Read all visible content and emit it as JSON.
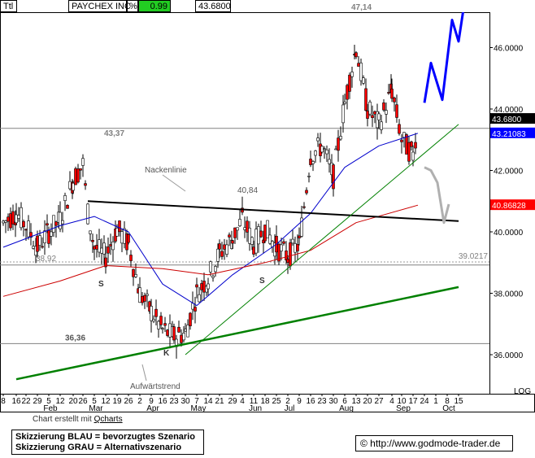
{
  "header": {
    "ttl": "Ttl",
    "name": "PAYCHEX INC",
    "pct_symbol": "%",
    "change": "0.99",
    "price": "43.6800"
  },
  "footer": {
    "credit_prefix": "Chart erstellt mit",
    "credit_link": "Qcharts",
    "legend_blue": "Skizzierung BLAU = bevorzugtes Szenario",
    "legend_gray": "Skizzierung GRAU = Alternativszenario",
    "website": "© http://www.godmode-trader.de"
  },
  "colors": {
    "change_bg": "#22cc22",
    "scenario_blue": "#0000ff",
    "scenario_gray": "#b0b0b0",
    "trend_green": "#008000",
    "sma_blue": "#0000cc",
    "sma_red": "#cc0000",
    "neckline": "#000000",
    "candle": "#000000",
    "candle_down_fill": "#ff0000",
    "level_label": "#808080"
  },
  "chart_data": {
    "type": "candlestick",
    "title": "PAYCHEX INC",
    "scale": "LOG",
    "grid": false,
    "ylim": [
      35.0,
      48.0
    ],
    "y_ticks": [
      "36.0000",
      "38.0000",
      "40.0000",
      "42.0000",
      "44.0000",
      "46.0000"
    ],
    "x_ticks": [
      "8",
      "16",
      "22",
      "29",
      "5",
      "12",
      "20",
      "26",
      "5",
      "12",
      "19",
      "26",
      "2",
      "9",
      "16",
      "23",
      "30",
      "7",
      "14",
      "21",
      "29",
      "4",
      "11",
      "18",
      "25",
      "2",
      "9",
      "16",
      "23",
      "30",
      "6",
      "13",
      "20",
      "27",
      "4",
      "10",
      "17",
      "24",
      "1",
      "8",
      "15"
    ],
    "month_labels": [
      "Feb",
      "Mar",
      "Apr",
      "May",
      "Jun",
      "Jul",
      "Aug",
      "Sep",
      "Oct"
    ],
    "price_label_current": "43.6800",
    "price_label_blue_sma": "43.21083",
    "price_label_red_sma": "40.86828",
    "price_label_level": "39.0217",
    "horizontal_levels": [
      {
        "value": 43.37,
        "label": "43,37"
      },
      {
        "value": 38.92,
        "label": "38,92"
      },
      {
        "value": 36.36,
        "label": "36,36"
      },
      {
        "value": 39.02,
        "label": ""
      }
    ],
    "annotations": [
      "47,14",
      "40,84",
      "Nackenlinie",
      "Aufwärtstrend",
      "S",
      "S",
      "K"
    ],
    "series": [
      {
        "kind": "candles",
        "description": "daily OHLC",
        "close_path": [
          [
            "Jan 8",
            40.3
          ],
          [
            "Jan 16",
            40.6
          ],
          [
            "Jan 22",
            40.2
          ],
          [
            "Jan 29",
            39.5
          ],
          [
            "Feb 5",
            40.0
          ],
          [
            "Feb 12",
            40.4
          ],
          [
            "Feb 20",
            41.7
          ],
          [
            "Feb 26",
            42.2
          ],
          [
            "Mar 1",
            40.6
          ],
          [
            "Mar 5",
            39.5
          ],
          [
            "Mar 12",
            39.2
          ],
          [
            "Mar 19",
            40.1
          ],
          [
            "Mar 26",
            39.6
          ],
          [
            "Apr 2",
            38.0
          ],
          [
            "Apr 9",
            37.4
          ],
          [
            "Apr 16",
            36.8
          ],
          [
            "Apr 23",
            36.6
          ],
          [
            "Apr 30",
            36.7
          ],
          [
            "May 7",
            38.0
          ],
          [
            "May 14",
            38.5
          ],
          [
            "May 21",
            39.3
          ],
          [
            "May 29",
            39.8
          ],
          [
            "Jun 4",
            40.4
          ],
          [
            "Jun 11",
            39.6
          ],
          [
            "Jun 18",
            40.1
          ],
          [
            "Jun 25",
            39.5
          ],
          [
            "Jul 2",
            39.2
          ],
          [
            "Jul 9",
            39.6
          ],
          [
            "Jul 16",
            42.5
          ],
          [
            "Jul 23",
            42.8
          ],
          [
            "Jul 30",
            41.8
          ],
          [
            "Aug 6",
            44.2
          ],
          [
            "Aug 13",
            46.0
          ],
          [
            "Aug 20",
            44.0
          ],
          [
            "Aug 27",
            43.5
          ],
          [
            "Sep 4",
            44.6
          ],
          [
            "Sep 10",
            43.0
          ],
          [
            "Sep 17",
            42.5
          ],
          [
            "Sep 20",
            43.68
          ]
        ]
      },
      {
        "kind": "line",
        "description": "blue moving average",
        "points": [
          [
            "Jan 8",
            39.5
          ],
          [
            "Feb 12",
            40.2
          ],
          [
            "Mar 5",
            40.5
          ],
          [
            "Mar 26",
            40.0
          ],
          [
            "Apr 16",
            38.3
          ],
          [
            "May 7",
            37.6
          ],
          [
            "May 29",
            38.6
          ],
          [
            "Jun 25",
            39.6
          ],
          [
            "Jul 16",
            40.6
          ],
          [
            "Aug 6",
            42.1
          ],
          [
            "Aug 27",
            42.8
          ],
          [
            "Sep 20",
            43.21
          ]
        ]
      },
      {
        "kind": "line",
        "description": "red moving average",
        "points": [
          [
            "Jan 8",
            37.9
          ],
          [
            "Feb 12",
            38.4
          ],
          [
            "Mar 12",
            38.9
          ],
          [
            "Apr 16",
            38.8
          ],
          [
            "May 14",
            38.6
          ],
          [
            "Jun 18",
            39.0
          ],
          [
            "Jul 16",
            39.4
          ],
          [
            "Aug 13",
            40.3
          ],
          [
            "Sep 20",
            40.87
          ]
        ]
      },
      {
        "kind": "line",
        "description": "neckline",
        "points": [
          [
            "Mar 1",
            41.0
          ],
          [
            "Oct 15",
            40.35
          ]
        ]
      },
      {
        "kind": "line",
        "description": "long-term uptrend",
        "points": [
          [
            "Jan 16",
            35.2
          ],
          [
            "Oct 15",
            38.2
          ]
        ]
      },
      {
        "kind": "line",
        "description": "thin uptrend",
        "points": [
          [
            "Apr 30",
            36.0
          ],
          [
            "Oct 15",
            43.5
          ]
        ]
      },
      {
        "kind": "line",
        "description": "blue scenario sketch",
        "points": [
          [
            "Sep 24",
            44.2
          ],
          [
            "Sep 28",
            45.5
          ],
          [
            "Oct 5",
            44.3
          ],
          [
            "Oct 11",
            46.9
          ],
          [
            "Oct 15",
            46.2
          ],
          [
            "Oct 19",
            47.6
          ]
        ]
      },
      {
        "kind": "line",
        "description": "gray scenario sketch",
        "points": [
          [
            "Sep 24",
            42.1
          ],
          [
            "Sep 28",
            42.0
          ],
          [
            "Oct 2",
            41.6
          ],
          [
            "Oct 6",
            40.3
          ],
          [
            "Oct 9",
            40.9
          ]
        ]
      }
    ]
  }
}
